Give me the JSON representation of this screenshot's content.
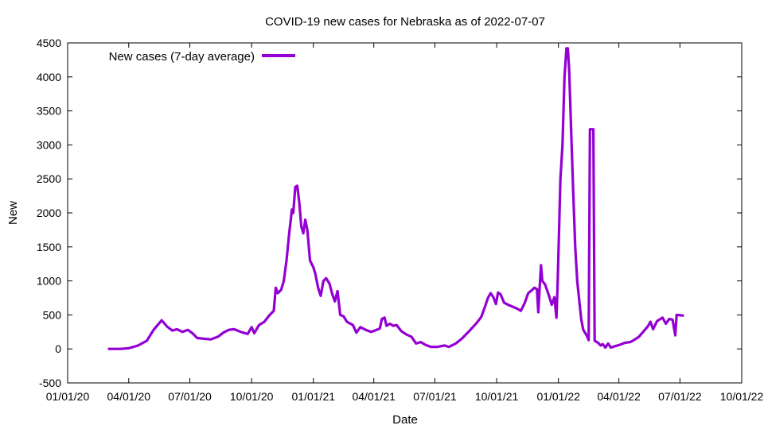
{
  "chart_data": {
    "type": "line",
    "title": "COVID-19 new cases for Nebraska as of 2022-07-07",
    "xlabel": "Date",
    "ylabel": "New",
    "xlim": [
      "2020-01-01",
      "2022-10-01"
    ],
    "ylim": [
      -500,
      4500
    ],
    "x_ticks": [
      "01/01/20",
      "04/01/20",
      "07/01/20",
      "10/01/20",
      "01/01/21",
      "04/01/21",
      "07/01/21",
      "10/01/21",
      "01/01/22",
      "04/01/22",
      "07/01/22",
      "10/01/22"
    ],
    "y_ticks": [
      -500,
      0,
      500,
      1000,
      1500,
      2000,
      2500,
      3000,
      3500,
      4000,
      4500
    ],
    "grid": false,
    "legend_position": "top-left",
    "series": [
      {
        "name": "New cases (7-day average)",
        "color": "#9400d3",
        "points": [
          [
            "2020-03-01",
            0
          ],
          [
            "2020-03-20",
            0
          ],
          [
            "2020-04-01",
            10
          ],
          [
            "2020-04-15",
            50
          ],
          [
            "2020-04-28",
            120
          ],
          [
            "2020-05-08",
            280
          ],
          [
            "2020-05-20",
            420
          ],
          [
            "2020-05-28",
            330
          ],
          [
            "2020-06-05",
            270
          ],
          [
            "2020-06-12",
            290
          ],
          [
            "2020-06-20",
            250
          ],
          [
            "2020-06-28",
            280
          ],
          [
            "2020-07-05",
            230
          ],
          [
            "2020-07-12",
            160
          ],
          [
            "2020-07-22",
            150
          ],
          [
            "2020-08-01",
            140
          ],
          [
            "2020-08-12",
            180
          ],
          [
            "2020-08-20",
            240
          ],
          [
            "2020-08-28",
            280
          ],
          [
            "2020-09-05",
            290
          ],
          [
            "2020-09-15",
            250
          ],
          [
            "2020-09-25",
            220
          ],
          [
            "2020-10-01",
            320
          ],
          [
            "2020-10-05",
            230
          ],
          [
            "2020-10-12",
            350
          ],
          [
            "2020-10-20",
            400
          ],
          [
            "2020-10-28",
            500
          ],
          [
            "2020-11-03",
            560
          ],
          [
            "2020-11-06",
            900
          ],
          [
            "2020-11-09",
            820
          ],
          [
            "2020-11-14",
            870
          ],
          [
            "2020-11-18",
            1000
          ],
          [
            "2020-11-22",
            1300
          ],
          [
            "2020-11-26",
            1700
          ],
          [
            "2020-11-30",
            2050
          ],
          [
            "2020-12-02",
            2000
          ],
          [
            "2020-12-05",
            2380
          ],
          [
            "2020-12-08",
            2400
          ],
          [
            "2020-12-11",
            2150
          ],
          [
            "2020-12-14",
            1800
          ],
          [
            "2020-12-17",
            1700
          ],
          [
            "2020-12-20",
            1900
          ],
          [
            "2020-12-23",
            1750
          ],
          [
            "2020-12-27",
            1300
          ],
          [
            "2021-01-01",
            1200
          ],
          [
            "2021-01-04",
            1100
          ],
          [
            "2021-01-08",
            900
          ],
          [
            "2021-01-12",
            780
          ],
          [
            "2021-01-16",
            1000
          ],
          [
            "2021-01-20",
            1040
          ],
          [
            "2021-01-25",
            960
          ],
          [
            "2021-01-29",
            810
          ],
          [
            "2021-02-02",
            700
          ],
          [
            "2021-02-06",
            850
          ],
          [
            "2021-02-10",
            500
          ],
          [
            "2021-02-15",
            480
          ],
          [
            "2021-02-20",
            400
          ],
          [
            "2021-03-01",
            350
          ],
          [
            "2021-03-06",
            240
          ],
          [
            "2021-03-12",
            320
          ],
          [
            "2021-03-20",
            280
          ],
          [
            "2021-03-28",
            250
          ],
          [
            "2021-04-05",
            280
          ],
          [
            "2021-04-10",
            300
          ],
          [
            "2021-04-13",
            440
          ],
          [
            "2021-04-17",
            460
          ],
          [
            "2021-04-20",
            340
          ],
          [
            "2021-04-25",
            370
          ],
          [
            "2021-04-30",
            340
          ],
          [
            "2021-05-05",
            350
          ],
          [
            "2021-05-12",
            260
          ],
          [
            "2021-05-20",
            210
          ],
          [
            "2021-05-27",
            180
          ],
          [
            "2021-06-03",
            80
          ],
          [
            "2021-06-10",
            100
          ],
          [
            "2021-06-17",
            60
          ],
          [
            "2021-06-25",
            30
          ],
          [
            "2021-07-05",
            30
          ],
          [
            "2021-07-15",
            50
          ],
          [
            "2021-07-22",
            30
          ],
          [
            "2021-08-01",
            80
          ],
          [
            "2021-08-10",
            150
          ],
          [
            "2021-08-20",
            250
          ],
          [
            "2021-09-01",
            380
          ],
          [
            "2021-09-08",
            470
          ],
          [
            "2021-09-14",
            630
          ],
          [
            "2021-09-18",
            750
          ],
          [
            "2021-09-22",
            820
          ],
          [
            "2021-09-26",
            760
          ],
          [
            "2021-09-30",
            660
          ],
          [
            "2021-10-03",
            830
          ],
          [
            "2021-10-07",
            800
          ],
          [
            "2021-10-12",
            680
          ],
          [
            "2021-10-18",
            650
          ],
          [
            "2021-10-25",
            620
          ],
          [
            "2021-11-01",
            590
          ],
          [
            "2021-11-06",
            560
          ],
          [
            "2021-11-12",
            680
          ],
          [
            "2021-11-17",
            820
          ],
          [
            "2021-11-22",
            860
          ],
          [
            "2021-11-26",
            900
          ],
          [
            "2021-11-30",
            880
          ],
          [
            "2021-12-02",
            540
          ],
          [
            "2021-12-04",
            900
          ],
          [
            "2021-12-06",
            1230
          ],
          [
            "2021-12-08",
            1000
          ],
          [
            "2021-12-12",
            950
          ],
          [
            "2021-12-18",
            780
          ],
          [
            "2021-12-22",
            650
          ],
          [
            "2021-12-26",
            760
          ],
          [
            "2021-12-29",
            460
          ],
          [
            "2021-12-31",
            1000
          ],
          [
            "2022-01-02",
            1750
          ],
          [
            "2022-01-04",
            2500
          ],
          [
            "2022-01-07",
            3000
          ],
          [
            "2022-01-10",
            4000
          ],
          [
            "2022-01-13",
            4420
          ],
          [
            "2022-01-15",
            4420
          ],
          [
            "2022-01-17",
            4100
          ],
          [
            "2022-01-20",
            3200
          ],
          [
            "2022-01-23",
            2300
          ],
          [
            "2022-01-26",
            1500
          ],
          [
            "2022-01-29",
            1000
          ],
          [
            "2022-02-01",
            720
          ],
          [
            "2022-02-04",
            430
          ],
          [
            "2022-02-07",
            280
          ],
          [
            "2022-02-12",
            200
          ],
          [
            "2022-02-15",
            130
          ],
          [
            "2022-02-17",
            3230
          ],
          [
            "2022-02-20",
            3230
          ],
          [
            "2022-02-22",
            3230
          ],
          [
            "2022-02-24",
            120
          ],
          [
            "2022-03-01",
            90
          ],
          [
            "2022-03-05",
            50
          ],
          [
            "2022-03-08",
            70
          ],
          [
            "2022-03-12",
            20
          ],
          [
            "2022-03-16",
            80
          ],
          [
            "2022-03-20",
            20
          ],
          [
            "2022-03-26",
            40
          ],
          [
            "2022-04-02",
            60
          ],
          [
            "2022-04-10",
            90
          ],
          [
            "2022-04-18",
            100
          ],
          [
            "2022-04-25",
            140
          ],
          [
            "2022-05-01",
            180
          ],
          [
            "2022-05-08",
            260
          ],
          [
            "2022-05-14",
            330
          ],
          [
            "2022-05-18",
            400
          ],
          [
            "2022-05-22",
            290
          ],
          [
            "2022-05-28",
            410
          ],
          [
            "2022-06-05",
            460
          ],
          [
            "2022-06-10",
            370
          ],
          [
            "2022-06-15",
            440
          ],
          [
            "2022-06-20",
            430
          ],
          [
            "2022-06-24",
            200
          ],
          [
            "2022-06-26",
            500
          ],
          [
            "2022-07-07",
            490
          ]
        ]
      }
    ]
  }
}
